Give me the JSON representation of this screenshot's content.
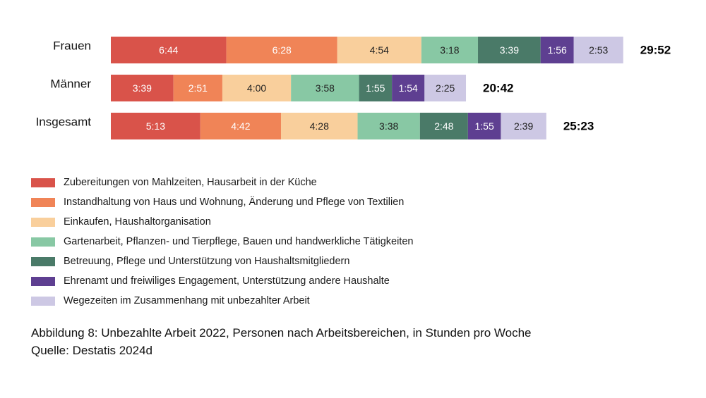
{
  "chart_data": {
    "type": "bar",
    "orientation": "horizontal",
    "stacked": true,
    "unit": "hours:minutes per week",
    "categories": [
      "Frauen",
      "Männer",
      "Insgesamt"
    ],
    "totals": [
      "29:52",
      "20:42",
      "25:23"
    ],
    "series": [
      {
        "name": "Zubereitungen von Mahlzeiten, Hausarbeit in der Küche",
        "color": "#d9534a",
        "text_color": "#ffffff",
        "values": [
          6.733,
          3.65,
          5.217
        ],
        "labels": [
          "6:44",
          "3:39",
          "5:13"
        ]
      },
      {
        "name": "Instandhaltung von Haus und Wohnung, Änderung und Pflege von Textilien",
        "color": "#f08457",
        "text_color": "#ffffff",
        "values": [
          6.467,
          2.85,
          4.7
        ],
        "labels": [
          "6:28",
          "2:51",
          "4:42"
        ]
      },
      {
        "name": "Einkaufen, Haushaltorganisation",
        "color": "#f9cf9c",
        "text_color": "#222222",
        "values": [
          4.9,
          4.0,
          4.467
        ],
        "labels": [
          "4:54",
          "4:00",
          "4:28"
        ]
      },
      {
        "name": "Gartenarbeit, Pflanzen- und Tierpflege, Bauen und handwerkliche Tätigkeiten",
        "color": "#88c8a4",
        "text_color": "#222222",
        "values": [
          3.3,
          3.967,
          3.633
        ],
        "labels": [
          "3:18",
          "3:58",
          "3:38"
        ]
      },
      {
        "name": "Betreuung, Pflege und Unterstützung von Haushaltsmitgliedern",
        "color": "#4a7a68",
        "text_color": "#ffffff",
        "values": [
          3.65,
          1.917,
          2.8
        ],
        "labels": [
          "3:39",
          "1:55",
          "2:48"
        ]
      },
      {
        "name": "Ehrenamt und freiwiliges Engagement, Unterstützung andere Haushalte",
        "color": "#5e3f91",
        "text_color": "#ffffff",
        "values": [
          1.933,
          1.9,
          1.917
        ],
        "labels": [
          "1:56",
          "1:54",
          "1:55"
        ]
      },
      {
        "name": "Wegezeiten im Zusammenhang mit unbezahlter Arbeit",
        "color": "#cdc8e4",
        "text_color": "#222222",
        "values": [
          2.883,
          2.417,
          2.65
        ],
        "labels": [
          "2:53",
          "2:25",
          "2:39"
        ]
      }
    ],
    "legend_position": "bottom-left",
    "grid": false
  },
  "caption": {
    "line1": "Abbildung 8: Unbezahlte Arbeit 2022, Personen nach Arbeitsbereichen, in Stunden pro Woche",
    "line2": "Quelle: Destatis 2024d"
  }
}
